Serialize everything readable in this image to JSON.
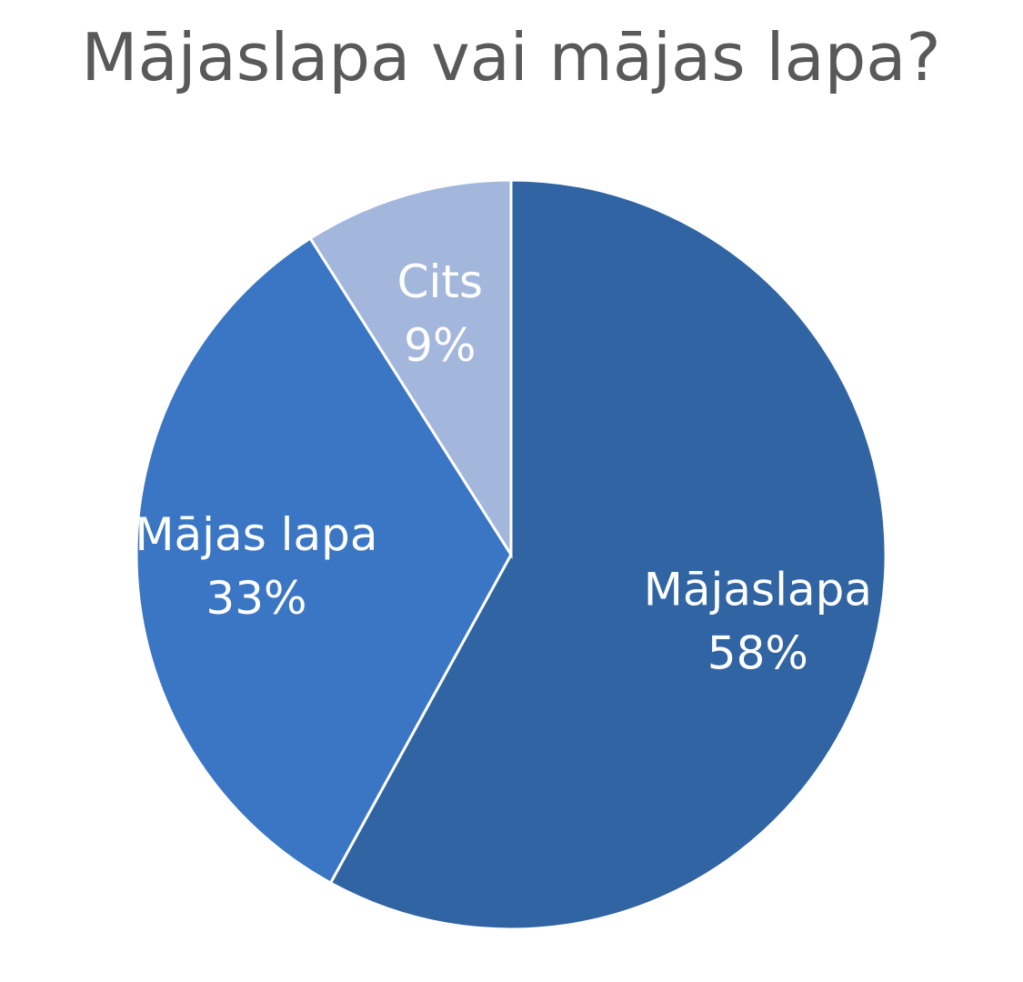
{
  "chart_data": {
    "type": "pie",
    "title": "Mājaslapa vai mājas lapa?",
    "categories": [
      "Mājaslapa",
      "Mājas lapa",
      "Cits"
    ],
    "values": [
      58,
      33,
      9
    ],
    "value_labels": [
      "58%",
      "33%",
      "9%"
    ],
    "colors": [
      "#3064a3",
      "#3a76c4",
      "#a3b6dc"
    ]
  }
}
